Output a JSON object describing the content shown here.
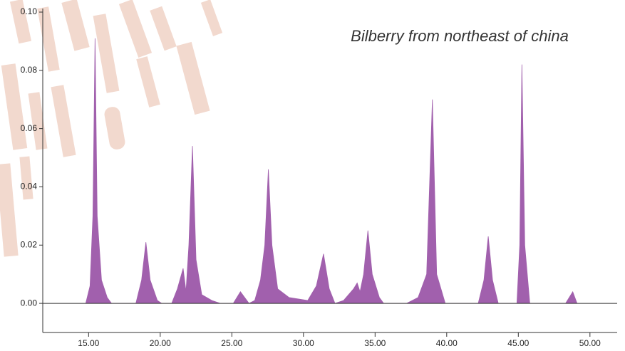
{
  "chart_data": {
    "type": "area",
    "title": "Bilberry from northeast of china",
    "color": "#a160ad",
    "x": [
      14.8,
      15.1,
      15.3,
      15.45,
      15.6,
      15.9,
      16.3,
      16.6,
      18.3,
      18.7,
      19.0,
      19.3,
      19.8,
      20.1,
      20.8,
      21.2,
      21.6,
      21.8,
      22.0,
      22.25,
      22.5,
      22.9,
      23.6,
      24.2,
      25.1,
      25.6,
      26.2,
      26.6,
      27.0,
      27.3,
      27.55,
      27.8,
      28.2,
      29.0,
      30.3,
      30.9,
      31.4,
      31.8,
      32.2,
      32.8,
      33.5,
      33.75,
      33.95,
      34.2,
      34.5,
      34.8,
      35.3,
      35.6,
      37.2,
      38.0,
      38.6,
      39.0,
      39.3,
      39.9,
      42.2,
      42.6,
      42.9,
      43.2,
      43.6,
      44.9,
      45.1,
      45.25,
      45.45,
      45.8,
      48.3,
      48.8,
      49.1
    ],
    "values": [
      0,
      0.006,
      0.03,
      0.091,
      0.03,
      0.008,
      0.002,
      0,
      0,
      0.008,
      0.021,
      0.008,
      0.001,
      0,
      0,
      0.005,
      0.012,
      0.004,
      0.02,
      0.054,
      0.015,
      0.003,
      0.001,
      0,
      0,
      0.004,
      0,
      0.001,
      0.008,
      0.02,
      0.046,
      0.02,
      0.005,
      0.002,
      0.001,
      0.006,
      0.017,
      0.005,
      0,
      0.001,
      0.005,
      0.007,
      0.004,
      0.01,
      0.025,
      0.01,
      0.002,
      0,
      0,
      0.002,
      0.01,
      0.07,
      0.01,
      0,
      0,
      0.008,
      0.023,
      0.008,
      0,
      0,
      0.02,
      0.082,
      0.02,
      0,
      0,
      0.004,
      0
    ],
    "xlim": [
      11.8,
      51.9
    ],
    "ylim": [
      -0.01,
      0.1
    ],
    "xticks": [
      {
        "value": 15,
        "label": "15.00"
      },
      {
        "value": 20,
        "label": "20.00"
      },
      {
        "value": 25,
        "label": "25.00"
      },
      {
        "value": 30,
        "label": "30.00"
      },
      {
        "value": 35,
        "label": "35.00"
      },
      {
        "value": 40,
        "label": "40.00"
      },
      {
        "value": 45,
        "label": "45.00"
      },
      {
        "value": 50,
        "label": "50.00"
      }
    ],
    "yticks": [
      {
        "value": 0,
        "label": "0.00"
      },
      {
        "value": 0.02,
        "label": "0.02"
      },
      {
        "value": 0.04,
        "label": "0.04"
      },
      {
        "value": 0.06,
        "label": "0.06"
      },
      {
        "value": 0.08,
        "label": "0.08"
      },
      {
        "value": 0.1,
        "label": "0.10"
      }
    ]
  }
}
